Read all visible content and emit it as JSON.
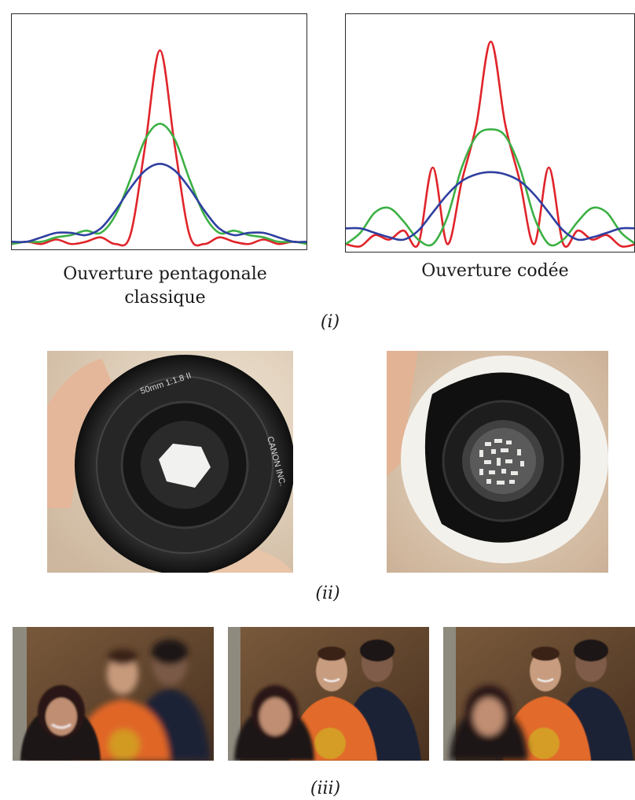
{
  "panel_i": {
    "captions": [
      "Ouverture pentagonale classique",
      "Ouverture codée"
    ],
    "label": "(i)"
  },
  "panel_ii": {
    "label": "(ii)",
    "lens_text": [
      "50mm 1:1.8 II",
      "CANON INC."
    ]
  },
  "panel_iii": {
    "label": "(iii)"
  },
  "colors": {
    "red": "#e0242a",
    "green": "#3cb044",
    "blue": "#2f3fa0"
  },
  "chart_data": [
    {
      "type": "line",
      "title": "",
      "xlabel": "",
      "ylabel": "",
      "x": [
        -1.0,
        -0.9,
        -0.8,
        -0.7,
        -0.6,
        -0.5,
        -0.4,
        -0.3,
        -0.2,
        -0.1,
        0.0,
        0.1,
        0.2,
        0.3,
        0.4,
        0.5,
        0.6,
        0.7,
        0.8,
        0.9,
        1.0
      ],
      "series": [
        {
          "color": "red",
          "values": [
            0.01,
            0.02,
            0.01,
            0.03,
            0.01,
            0.02,
            0.04,
            0.01,
            0.05,
            0.45,
            0.88,
            0.45,
            0.05,
            0.01,
            0.04,
            0.02,
            0.01,
            0.03,
            0.01,
            0.02,
            0.01
          ]
        },
        {
          "color": "green",
          "values": [
            0.01,
            0.02,
            0.02,
            0.04,
            0.05,
            0.07,
            0.06,
            0.14,
            0.3,
            0.48,
            0.55,
            0.48,
            0.3,
            0.14,
            0.06,
            0.07,
            0.05,
            0.04,
            0.02,
            0.02,
            0.01
          ]
        },
        {
          "color": "blue",
          "values": [
            0.02,
            0.02,
            0.04,
            0.06,
            0.06,
            0.05,
            0.08,
            0.16,
            0.26,
            0.34,
            0.37,
            0.34,
            0.26,
            0.16,
            0.08,
            0.05,
            0.06,
            0.06,
            0.04,
            0.02,
            0.02
          ]
        }
      ],
      "ylim": [
        0,
        1
      ],
      "grid": false
    },
    {
      "type": "line",
      "title": "",
      "xlabel": "",
      "ylabel": "",
      "x": [
        -1.0,
        -0.9,
        -0.8,
        -0.7,
        -0.6,
        -0.5,
        -0.4,
        -0.3,
        -0.2,
        -0.1,
        0.0,
        0.1,
        0.2,
        0.3,
        0.4,
        0.5,
        0.6,
        0.7,
        0.8,
        0.9,
        1.0
      ],
      "series": [
        {
          "color": "red",
          "values": [
            0.02,
            0.01,
            0.06,
            0.04,
            0.08,
            0.02,
            0.36,
            0.02,
            0.3,
            0.55,
            0.92,
            0.55,
            0.3,
            0.02,
            0.36,
            0.02,
            0.08,
            0.04,
            0.06,
            0.01,
            0.02
          ]
        },
        {
          "color": "green",
          "values": [
            0.02,
            0.07,
            0.16,
            0.18,
            0.12,
            0.04,
            0.02,
            0.14,
            0.36,
            0.5,
            0.53,
            0.5,
            0.36,
            0.14,
            0.02,
            0.04,
            0.12,
            0.18,
            0.16,
            0.07,
            0.02
          ]
        },
        {
          "color": "blue",
          "values": [
            0.09,
            0.09,
            0.07,
            0.05,
            0.04,
            0.08,
            0.16,
            0.24,
            0.3,
            0.33,
            0.34,
            0.33,
            0.3,
            0.24,
            0.16,
            0.08,
            0.04,
            0.05,
            0.07,
            0.09,
            0.09
          ]
        }
      ],
      "ylim": [
        0,
        1
      ],
      "grid": false
    }
  ]
}
